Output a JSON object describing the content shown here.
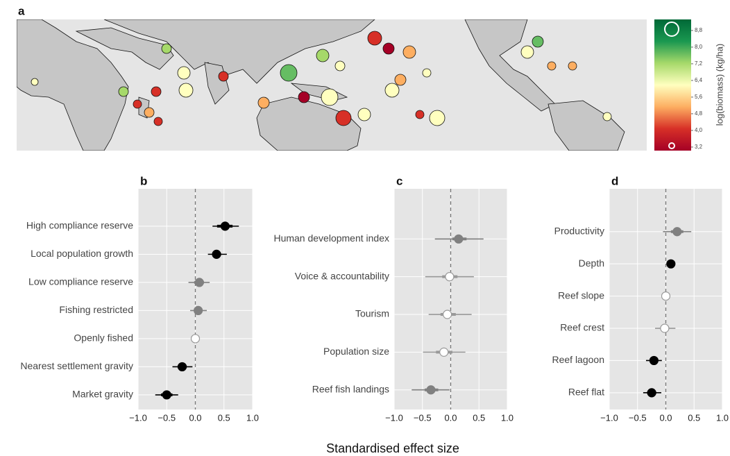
{
  "figure": {
    "xlabel": "Standardised effect size"
  },
  "chart_data": [
    {
      "type": "map",
      "title": "a",
      "colorbar": {
        "label": "log(biomass) (kg/ha)",
        "lim": [
          3.03,
          9.33
        ],
        "colors": [
          "#a50026",
          "#d73027",
          "#fdae61",
          "#ffffbf",
          "#a6d96a",
          "#1a9850",
          "#006837"
        ],
        "ticks": [
          {
            "value": 3.2,
            "label": "3,2"
          },
          {
            "value": 4.0,
            "label": "4,0"
          },
          {
            "value": 4.8,
            "label": "4,8"
          },
          {
            "value": 5.6,
            "label": "5,6"
          },
          {
            "value": 6.4,
            "label": "6,4"
          },
          {
            "value": 7.2,
            "label": "7,2"
          },
          {
            "value": 8.0,
            "label": "8,0"
          },
          {
            "value": 8.8,
            "label": "8,8"
          }
        ]
      }
    },
    {
      "type": "forest",
      "title": "b",
      "categories": [
        "High compliance reserve",
        "Local population growth",
        "Low compliance reserve",
        "Fishing restricted",
        "Openly fished",
        "Nearest settlement gravity",
        "Market gravity"
      ],
      "values": [
        0.52,
        0.37,
        0.07,
        0.05,
        0,
        -0.23,
        -0.5
      ],
      "ci_outer": [
        [
          0.3,
          0.76
        ],
        [
          0.22,
          0.55
        ],
        [
          -0.12,
          0.25
        ],
        [
          -0.09,
          0.2
        ],
        null,
        [
          -0.4,
          -0.05
        ],
        [
          -0.7,
          -0.3
        ]
      ],
      "ci_inner": [
        [
          0.38,
          0.65
        ],
        [
          0.3,
          0.45
        ],
        [
          -0.02,
          0.15
        ],
        [
          -0.01,
          0.12
        ],
        null,
        [
          -0.31,
          -0.15
        ],
        [
          -0.6,
          -0.4
        ]
      ],
      "point_colors": [
        "#000000",
        "#000000",
        "#808080",
        "#808080",
        "#ffffff",
        "#000000",
        "#000000"
      ],
      "xlim": [
        -1,
        1
      ],
      "xticks": [
        {
          "value": -1,
          "label": "−1.0"
        },
        {
          "value": -0.5,
          "label": "−0.5"
        },
        {
          "value": 0,
          "label": "0.0"
        },
        {
          "value": 0.5,
          "label": "0.5"
        },
        {
          "value": 1,
          "label": "1.0"
        }
      ],
      "grid": true
    },
    {
      "type": "forest",
      "title": "c",
      "categories": [
        "Human development index",
        "Voice & accountability",
        "Tourism",
        "Population size",
        "Reef fish landings"
      ],
      "values": [
        0.14,
        -0.02,
        -0.06,
        -0.12,
        -0.35
      ],
      "ci_outer": [
        [
          -0.28,
          0.58
        ],
        [
          -0.45,
          0.41
        ],
        [
          -0.39,
          0.37
        ],
        [
          -0.49,
          0.26
        ],
        [
          -0.69,
          -0.02
        ]
      ],
      "ci_inner": [
        [
          0.03,
          0.28
        ],
        [
          -0.15,
          0.12
        ],
        [
          -0.18,
          0.09
        ],
        [
          -0.26,
          0.03
        ],
        [
          -0.46,
          -0.22
        ]
      ],
      "point_colors": [
        "#808080",
        "#ffffff",
        "#ffffff",
        "#ffffff",
        "#808080"
      ],
      "xlim": [
        -1,
        1
      ],
      "xticks": [
        {
          "value": -1,
          "label": "−1.0"
        },
        {
          "value": -0.5,
          "label": "−0.5"
        },
        {
          "value": 0,
          "label": "0.0"
        },
        {
          "value": 0.5,
          "label": "0.5"
        },
        {
          "value": 1,
          "label": "1.0"
        }
      ],
      "grid": true
    },
    {
      "type": "forest",
      "title": "d",
      "categories": [
        "Productivity",
        "Depth",
        "Reef slope",
        "Reef crest",
        "Reef lagoon",
        "Reef flat"
      ],
      "values": [
        0.2,
        0.09,
        0,
        -0.02,
        -0.21,
        -0.25
      ],
      "ci_outer": [
        [
          -0.05,
          0.45
        ],
        [
          0.03,
          0.15
        ],
        null,
        [
          -0.19,
          0.17
        ],
        [
          -0.35,
          -0.07
        ],
        [
          -0.4,
          -0.08
        ]
      ],
      "ci_inner": [
        [
          0.09,
          0.31
        ],
        [
          0.05,
          0.13
        ],
        null,
        [
          -0.08,
          0.06
        ],
        [
          -0.28,
          -0.14
        ],
        [
          -0.33,
          -0.17
        ]
      ],
      "point_colors": [
        "#808080",
        "#000000",
        "#ffffff",
        "#ffffff",
        "#000000",
        "#000000"
      ],
      "xlim": [
        -1,
        1
      ],
      "xticks": [
        {
          "value": -1,
          "label": "−1.0"
        },
        {
          "value": -0.5,
          "label": "−0.5"
        },
        {
          "value": 0,
          "label": "0.0"
        },
        {
          "value": 0.5,
          "label": "0.5"
        },
        {
          "value": 1,
          "label": "1.0"
        }
      ],
      "grid": true
    }
  ]
}
